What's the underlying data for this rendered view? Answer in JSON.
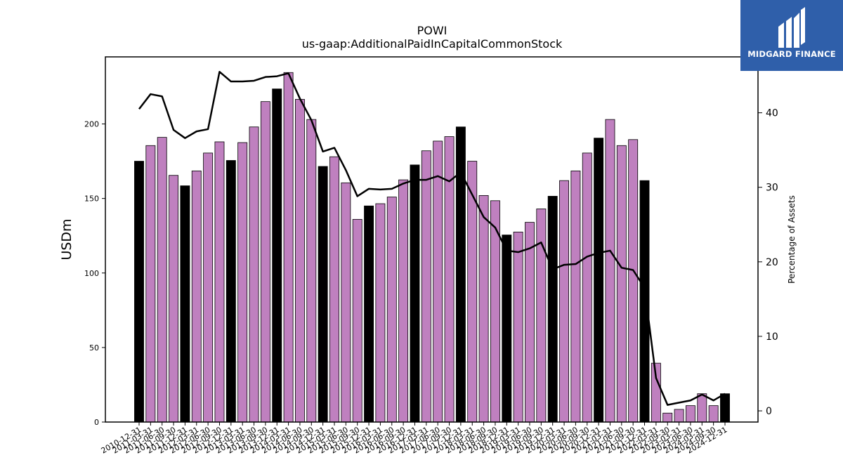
{
  "brand": {
    "name": "MIDGARD FINANCE",
    "bg_color": "#2f5faa",
    "text_color": "#ffffff"
  },
  "chart_data": {
    "type": "bar",
    "title": "POWI",
    "subtitle": "us-gaap:AdditionalPaidInCapitalCommonStock",
    "ylabel": "USDm",
    "y2label": "Percentage of Assets",
    "ylim": [
      0,
      245
    ],
    "y2lim": [
      -1.5,
      47.5
    ],
    "yticks": [
      0,
      50,
      100,
      150,
      200
    ],
    "y2ticks": [
      0,
      10,
      20,
      30,
      40
    ],
    "grid": false,
    "colors": {
      "q4_bar": "#000000",
      "other_bar": "#bf80bf",
      "line": "#000000"
    },
    "categories": [
      "2010-12-31",
      "2011-03-31",
      "2011-06-30",
      "2011-09-30",
      "2011-12-31",
      "2012-03-31",
      "2012-06-30",
      "2012-09-30",
      "2012-12-31",
      "2013-03-31",
      "2013-06-30",
      "2013-09-30",
      "2013-12-31",
      "2014-03-31",
      "2014-06-30",
      "2014-09-30",
      "2014-12-31",
      "2015-03-31",
      "2015-06-30",
      "2015-09-30",
      "2015-12-31",
      "2016-03-31",
      "2016-06-30",
      "2016-09-30",
      "2016-12-31",
      "2017-03-31",
      "2017-06-30",
      "2017-09-30",
      "2017-12-31",
      "2018-03-31",
      "2018-06-30",
      "2018-09-30",
      "2018-12-31",
      "2019-03-31",
      "2019-06-30",
      "2019-09-30",
      "2019-12-31",
      "2020-03-31",
      "2020-06-30",
      "2020-09-30",
      "2020-12-31",
      "2021-03-31",
      "2021-06-30",
      "2021-09-30",
      "2021-12-31",
      "2022-03-31",
      "2022-09-30",
      "2023-03-31",
      "2023-06-30",
      "2024-03-31",
      "2024-09-30",
      "2024-12-31"
    ],
    "series": [
      {
        "type": "bar",
        "values": [
          175,
          185.5,
          191,
          165.5,
          158.5,
          168.5,
          180.5,
          188,
          175.5,
          187.5,
          198,
          215,
          223.5,
          234.5,
          216.5,
          203,
          171.5,
          178,
          160.5,
          136,
          145,
          146.5,
          151,
          162.5,
          172.5,
          182,
          188.5,
          191.5,
          198,
          175,
          152,
          148.5,
          125.5,
          127.5,
          134,
          143,
          151.5,
          162,
          168.5,
          180.5,
          190.5,
          203,
          185.5,
          189.5,
          162,
          39.5,
          6,
          8.5,
          11,
          19,
          11,
          19
        ],
        "is_q4": [
          true,
          false,
          false,
          false,
          true,
          false,
          false,
          false,
          true,
          false,
          false,
          false,
          true,
          false,
          false,
          false,
          true,
          false,
          false,
          false,
          true,
          false,
          false,
          false,
          true,
          false,
          false,
          false,
          true,
          false,
          false,
          false,
          true,
          false,
          false,
          false,
          true,
          false,
          false,
          false,
          true,
          false,
          false,
          false,
          true,
          false,
          false,
          false,
          false,
          false,
          false,
          true
        ]
      },
      {
        "type": "line",
        "axis": "right",
        "values": [
          40.5,
          42.5,
          42.2,
          37.7,
          36.6,
          37.5,
          37.8,
          45.5,
          44.2,
          44.2,
          44.3,
          44.8,
          44.9,
          45.3,
          41.9,
          39.0,
          34.8,
          35.3,
          32.3,
          28.8,
          29.8,
          29.7,
          29.8,
          30.5,
          31.0,
          31.0,
          31.5,
          30.8,
          32.0,
          29.0,
          26.0,
          24.6,
          21.5,
          21.3,
          21.8,
          22.6,
          19.0,
          19.6,
          19.7,
          20.7,
          21.2,
          21.5,
          19.2,
          18.9,
          16.5,
          4.4,
          0.8,
          1.1,
          1.4,
          2.2,
          1.4,
          2.3
        ]
      }
    ]
  }
}
